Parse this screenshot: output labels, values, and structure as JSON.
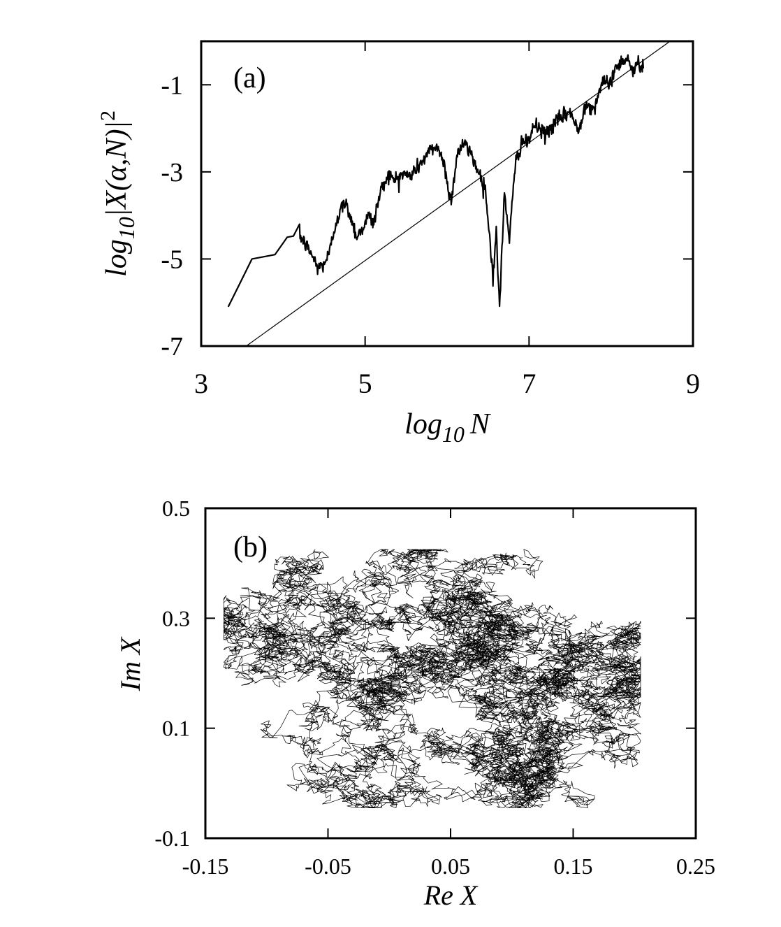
{
  "chart_data": [
    {
      "type": "line",
      "panel_label": "(a)",
      "xlabel": {
        "main": "log",
        "sub": "10",
        "var": "N"
      },
      "ylabel": {
        "main": "log",
        "sub": "10",
        "rest": "|X(α,N)|",
        "sup": "2"
      },
      "xlim": [
        3,
        9
      ],
      "ylim": [
        -7,
        0
      ],
      "xticks": [
        3,
        5,
        7,
        9
      ],
      "yticks": [
        -1,
        -3,
        -5,
        -7
      ],
      "xtick_labels": [
        "3",
        "5",
        "7",
        "9"
      ],
      "ytick_labels": [
        "-1",
        "-3",
        "-5",
        "-7"
      ],
      "grid": false,
      "legend": "none",
      "series": [
        {
          "style": "thick-noisy",
          "x": [
            3.33,
            3.62,
            3.9,
            4.05,
            4.2,
            4.35,
            4.42,
            4.48,
            4.56,
            4.65,
            4.75,
            4.82,
            4.9,
            4.96,
            5.05,
            5.1,
            5.18,
            5.28,
            5.35,
            5.45,
            5.55,
            5.68,
            5.8,
            5.88,
            5.96,
            6.05,
            6.12,
            6.2,
            6.3,
            6.38,
            6.46,
            6.52,
            6.56,
            6.6,
            6.64,
            6.7,
            6.76,
            6.84,
            6.92,
            6.98,
            7.05,
            7.12,
            7.2,
            7.3,
            7.4,
            7.5,
            7.6,
            7.7,
            7.78,
            7.88,
            7.98,
            8.08,
            8.2,
            8.28,
            8.32,
            8.4
          ],
          "y": [
            -6.1,
            -5.0,
            -4.9,
            -4.5,
            -4.45,
            -4.9,
            -5.2,
            -5.15,
            -4.9,
            -4.1,
            -3.7,
            -4.0,
            -4.5,
            -4.3,
            -4.0,
            -4.2,
            -3.5,
            -3.05,
            -3.2,
            -3.05,
            -3.1,
            -2.8,
            -2.5,
            -2.4,
            -2.8,
            -3.7,
            -2.6,
            -2.35,
            -2.6,
            -3.0,
            -3.3,
            -4.5,
            -5.4,
            -4.4,
            -6.1,
            -3.5,
            -4.5,
            -2.75,
            -2.25,
            -2.4,
            -1.95,
            -2.0,
            -2.15,
            -1.9,
            -1.75,
            -1.6,
            -2.1,
            -1.35,
            -1.6,
            -1.0,
            -0.95,
            -0.55,
            -0.35,
            -0.8,
            -0.45,
            -0.6
          ]
        },
        {
          "style": "thin-straight",
          "x": [
            3.55,
            8.72
          ],
          "y": [
            -7.0,
            0.0
          ]
        }
      ]
    },
    {
      "type": "line",
      "panel_label": "(b)",
      "xlabel": {
        "main": "Re X"
      },
      "ylabel": {
        "main": "Im X"
      },
      "xlim": [
        -0.15,
        0.25
      ],
      "ylim": [
        -0.1,
        0.5
      ],
      "xticks": [
        -0.15,
        -0.05,
        0.05,
        0.15,
        0.25
      ],
      "yticks": [
        -0.1,
        0.1,
        0.3,
        0.5
      ],
      "xtick_labels": [
        "-0.15",
        "-0.05",
        "0.05",
        "0.15",
        "0.25"
      ],
      "ytick_labels": [
        "-0.1",
        "0.1",
        "0.3",
        "0.5"
      ],
      "grid": false,
      "legend": "none",
      "series": [
        {
          "style": "random-walk",
          "waypoints_x": [
            0.0,
            0.05,
            0.1,
            0.15,
            0.17,
            0.2,
            0.19,
            0.17,
            0.14,
            0.1,
            0.06,
            0.02,
            -0.02,
            -0.05,
            -0.09,
            -0.12,
            -0.08,
            -0.03,
            0.0,
            0.04,
            0.06,
            0.09,
            0.12,
            0.15,
            0.12,
            0.07,
            0.03,
            -0.02,
            -0.07,
            -0.1,
            -0.06,
            0.0,
            0.05,
            0.1,
            0.15
          ],
          "waypoints_y": [
            0.35,
            0.32,
            0.28,
            0.25,
            0.22,
            0.26,
            0.18,
            0.15,
            0.19,
            0.2,
            0.23,
            0.26,
            0.29,
            0.28,
            0.27,
            0.28,
            0.25,
            0.3,
            0.38,
            0.4,
            0.34,
            0.28,
            0.22,
            0.1,
            0.05,
            0.0,
            0.04,
            0.06,
            0.1,
            0.09,
            0.14,
            0.18,
            0.07,
            0.02,
            -0.05
          ]
        }
      ]
    }
  ]
}
